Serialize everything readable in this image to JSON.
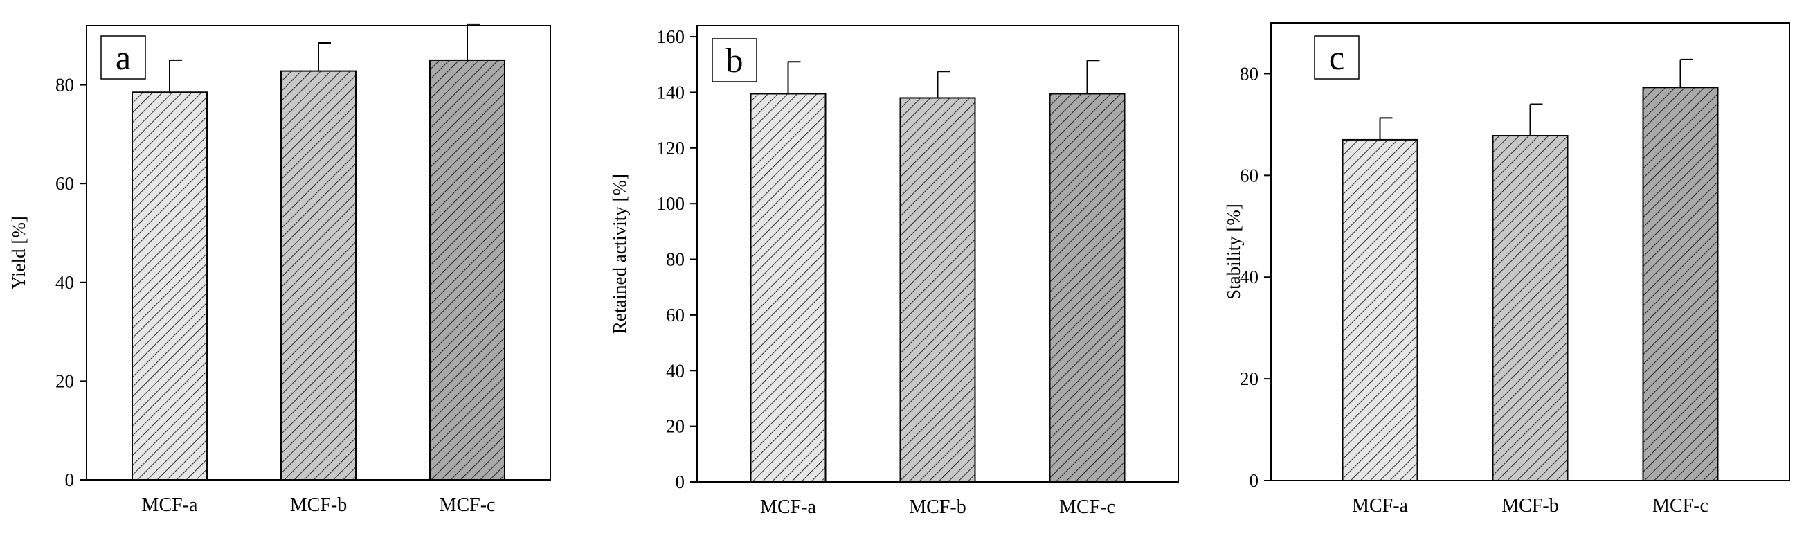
{
  "chart_data": [
    {
      "type": "bar",
      "panel_label": "a",
      "categories": [
        "MCF-a",
        "MCF-b",
        "MCF-c"
      ],
      "values": [
        78.5,
        82.8,
        85.0
      ],
      "errors": [
        6.5,
        5.7,
        7.3
      ],
      "ylabel": "Yield [%]",
      "xlabel": "",
      "ylim": [
        0,
        92
      ],
      "yticks": [
        "0",
        "20",
        "40",
        "60",
        "80"
      ],
      "fills": [
        "#e6e6e6",
        "#c8c8c8",
        "#a9a9a9"
      ]
    },
    {
      "type": "bar",
      "panel_label": "b",
      "categories": [
        "MCF-a",
        "MCF-b",
        "MCF-c"
      ],
      "values": [
        139.5,
        138.0,
        139.5
      ],
      "errors": [
        11.5,
        9.5,
        12.0
      ],
      "ylabel": "Retained activity [%]",
      "xlabel": "",
      "ylim": [
        0,
        164
      ],
      "yticks": [
        "0",
        "20",
        "40",
        "60",
        "80",
        "100",
        "120",
        "140",
        "160"
      ],
      "fills": [
        "#e6e6e6",
        "#c8c8c8",
        "#a9a9a9"
      ]
    },
    {
      "type": "bar",
      "panel_label": "c",
      "categories": [
        "MCF-a",
        "MCF-b",
        "MCF-c"
      ],
      "values": [
        67.0,
        67.8,
        77.3
      ],
      "errors": [
        4.3,
        6.2,
        5.5
      ],
      "ylabel": "Stability [%]",
      "xlabel": "",
      "ylim": [
        0,
        90
      ],
      "yticks": [
        "0",
        "20",
        "40",
        "60",
        "80"
      ],
      "fills": [
        "#e6e6e6",
        "#c8c8c8",
        "#a9a9a9"
      ]
    }
  ]
}
